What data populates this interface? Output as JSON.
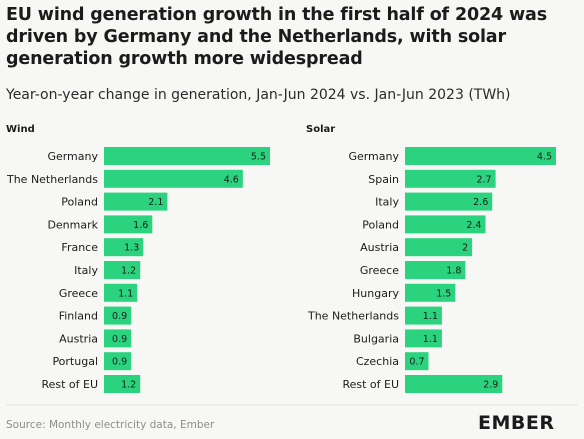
{
  "header": {
    "title": "EU wind generation growth in the first half of 2024 was driven by Germany and the Netherlands, with solar generation growth more widespread",
    "subtitle": "Year-on-year change in generation, Jan-Jun 2024 vs. Jan-Jun 2023 (TWh)"
  },
  "footer": {
    "source": "Source: Monthly electricity data, Ember",
    "logo": "EMBER"
  },
  "colors": {
    "bar": "#2bd37f",
    "background": "#f7f8f5"
  },
  "chart_data": [
    {
      "type": "bar",
      "orientation": "horizontal",
      "title": "Wind",
      "categories": [
        "Germany",
        "The Netherlands",
        "Poland",
        "Denmark",
        "France",
        "Italy",
        "Greece",
        "Finland",
        "Austria",
        "Portugal",
        "Rest of EU"
      ],
      "values": [
        5.5,
        4.6,
        2.1,
        1.6,
        1.3,
        1.2,
        1.1,
        0.9,
        0.9,
        0.9,
        1.2
      ],
      "value_labels": [
        "5.5",
        "4.6",
        "2.1",
        "1.6",
        "1.3",
        "1.2",
        "1.1",
        "0.9",
        "0.9",
        "0.9",
        "1.2"
      ],
      "xlim": [
        0,
        5.5
      ],
      "grid": false
    },
    {
      "type": "bar",
      "orientation": "horizontal",
      "title": "Solar",
      "categories": [
        "Germany",
        "Spain",
        "Italy",
        "Poland",
        "Austria",
        "Greece",
        "Hungary",
        "The Netherlands",
        "Bulgaria",
        "Czechia",
        "Rest of EU"
      ],
      "values": [
        4.5,
        2.7,
        2.6,
        2.4,
        2.0,
        1.8,
        1.5,
        1.1,
        1.1,
        0.7,
        2.9
      ],
      "value_labels": [
        "4.5",
        "2.7",
        "2.6",
        "2.4",
        "2",
        "1.8",
        "1.5",
        "1.1",
        "1.1",
        "0.7",
        "2.9"
      ],
      "xlim": [
        0,
        4.5
      ],
      "grid": false
    }
  ]
}
